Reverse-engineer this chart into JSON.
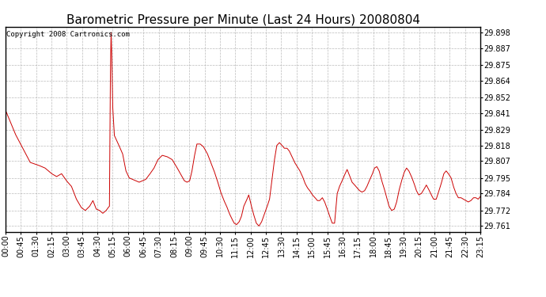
{
  "title": "Barometric Pressure per Minute (Last 24 Hours) 20080804",
  "copyright_text": "Copyright 2008 Cartronics.com",
  "line_color": "#cc0000",
  "background_color": "#ffffff",
  "plot_bg_color": "#ffffff",
  "grid_color": "#aaaaaa",
  "yticks": [
    29.761,
    29.772,
    29.784,
    29.795,
    29.807,
    29.818,
    29.829,
    29.841,
    29.852,
    29.864,
    29.875,
    29.887,
    29.898
  ],
  "ylim": [
    29.757,
    29.902
  ],
  "xtick_labels": [
    "00:00",
    "00:45",
    "01:30",
    "02:15",
    "03:00",
    "03:45",
    "04:30",
    "05:15",
    "06:00",
    "06:45",
    "07:30",
    "08:15",
    "09:00",
    "09:45",
    "10:30",
    "11:15",
    "12:00",
    "12:45",
    "13:30",
    "14:15",
    "15:00",
    "15:45",
    "16:30",
    "17:15",
    "18:00",
    "18:45",
    "19:30",
    "20:15",
    "21:00",
    "21:45",
    "22:30",
    "23:15"
  ],
  "title_fontsize": 11,
  "tick_fontsize": 7,
  "copyright_fontsize": 6.5,
  "control_points": [
    [
      0,
      29.843
    ],
    [
      30,
      29.826
    ],
    [
      55,
      29.815
    ],
    [
      75,
      29.806
    ],
    [
      100,
      29.804
    ],
    [
      120,
      29.802
    ],
    [
      140,
      29.798
    ],
    [
      155,
      29.796
    ],
    [
      170,
      29.798
    ],
    [
      185,
      29.793
    ],
    [
      200,
      29.789
    ],
    [
      215,
      29.78
    ],
    [
      230,
      29.774
    ],
    [
      242,
      29.772
    ],
    [
      255,
      29.775
    ],
    [
      265,
      29.779
    ],
    [
      275,
      29.773
    ],
    [
      285,
      29.772
    ],
    [
      295,
      29.77
    ],
    [
      305,
      29.772
    ],
    [
      311,
      29.774
    ],
    [
      315,
      29.775
    ],
    [
      316,
      29.81
    ],
    [
      318,
      29.87
    ],
    [
      320,
      29.898
    ],
    [
      322,
      29.88
    ],
    [
      325,
      29.845
    ],
    [
      330,
      29.825
    ],
    [
      340,
      29.82
    ],
    [
      355,
      29.812
    ],
    [
      365,
      29.8
    ],
    [
      375,
      29.795
    ],
    [
      385,
      29.794
    ],
    [
      395,
      29.793
    ],
    [
      405,
      29.792
    ],
    [
      415,
      29.793
    ],
    [
      425,
      29.794
    ],
    [
      435,
      29.797
    ],
    [
      450,
      29.802
    ],
    [
      462,
      29.808
    ],
    [
      475,
      29.811
    ],
    [
      490,
      29.81
    ],
    [
      505,
      29.808
    ],
    [
      518,
      29.803
    ],
    [
      530,
      29.798
    ],
    [
      542,
      29.793
    ],
    [
      550,
      29.792
    ],
    [
      558,
      29.793
    ],
    [
      565,
      29.8
    ],
    [
      572,
      29.81
    ],
    [
      580,
      29.819
    ],
    [
      590,
      29.819
    ],
    [
      600,
      29.817
    ],
    [
      612,
      29.812
    ],
    [
      622,
      29.806
    ],
    [
      632,
      29.8
    ],
    [
      642,
      29.793
    ],
    [
      652,
      29.785
    ],
    [
      662,
      29.779
    ],
    [
      670,
      29.775
    ],
    [
      678,
      29.77
    ],
    [
      686,
      29.766
    ],
    [
      693,
      29.763
    ],
    [
      700,
      29.762
    ],
    [
      708,
      29.764
    ],
    [
      715,
      29.768
    ],
    [
      722,
      29.775
    ],
    [
      730,
      29.779
    ],
    [
      737,
      29.783
    ],
    [
      744,
      29.776
    ],
    [
      752,
      29.769
    ],
    [
      760,
      29.763
    ],
    [
      768,
      29.761
    ],
    [
      776,
      29.764
    ],
    [
      785,
      29.77
    ],
    [
      793,
      29.775
    ],
    [
      800,
      29.78
    ],
    [
      808,
      29.795
    ],
    [
      815,
      29.808
    ],
    [
      822,
      29.818
    ],
    [
      830,
      29.82
    ],
    [
      838,
      29.818
    ],
    [
      845,
      29.816
    ],
    [
      853,
      29.816
    ],
    [
      860,
      29.814
    ],
    [
      868,
      29.81
    ],
    [
      876,
      29.806
    ],
    [
      884,
      29.803
    ],
    [
      892,
      29.8
    ],
    [
      900,
      29.796
    ],
    [
      908,
      29.791
    ],
    [
      915,
      29.788
    ],
    [
      922,
      29.786
    ],
    [
      930,
      29.783
    ],
    [
      938,
      29.781
    ],
    [
      945,
      29.779
    ],
    [
      952,
      29.779
    ],
    [
      960,
      29.781
    ],
    [
      967,
      29.778
    ],
    [
      975,
      29.773
    ],
    [
      982,
      29.768
    ],
    [
      990,
      29.763
    ],
    [
      997,
      29.763
    ],
    [
      1005,
      29.784
    ],
    [
      1012,
      29.789
    ],
    [
      1020,
      29.793
    ],
    [
      1027,
      29.797
    ],
    [
      1035,
      29.801
    ],
    [
      1042,
      29.797
    ],
    [
      1050,
      29.792
    ],
    [
      1058,
      29.79
    ],
    [
      1065,
      29.788
    ],
    [
      1073,
      29.786
    ],
    [
      1080,
      29.785
    ],
    [
      1088,
      29.786
    ],
    [
      1095,
      29.789
    ],
    [
      1102,
      29.793
    ],
    [
      1110,
      29.797
    ],
    [
      1118,
      29.802
    ],
    [
      1125,
      29.803
    ],
    [
      1132,
      29.8
    ],
    [
      1140,
      29.793
    ],
    [
      1148,
      29.787
    ],
    [
      1155,
      29.781
    ],
    [
      1162,
      29.775
    ],
    [
      1170,
      29.772
    ],
    [
      1178,
      29.773
    ],
    [
      1185,
      29.778
    ],
    [
      1192,
      29.786
    ],
    [
      1200,
      29.793
    ],
    [
      1208,
      29.799
    ],
    [
      1215,
      29.802
    ],
    [
      1222,
      29.8
    ],
    [
      1230,
      29.796
    ],
    [
      1238,
      29.791
    ],
    [
      1245,
      29.786
    ],
    [
      1252,
      29.783
    ],
    [
      1260,
      29.784
    ],
    [
      1268,
      29.787
    ],
    [
      1275,
      29.79
    ],
    [
      1282,
      29.787
    ],
    [
      1290,
      29.783
    ],
    [
      1297,
      29.78
    ],
    [
      1305,
      29.78
    ],
    [
      1312,
      29.785
    ],
    [
      1320,
      29.791
    ],
    [
      1328,
      29.798
    ],
    [
      1335,
      29.8
    ],
    [
      1342,
      29.798
    ],
    [
      1350,
      29.795
    ],
    [
      1357,
      29.789
    ],
    [
      1365,
      29.784
    ],
    [
      1372,
      29.781
    ],
    [
      1380,
      29.781
    ],
    [
      1387,
      29.78
    ],
    [
      1395,
      29.779
    ],
    [
      1402,
      29.778
    ],
    [
      1410,
      29.779
    ],
    [
      1418,
      29.781
    ],
    [
      1425,
      29.781
    ],
    [
      1432,
      29.78
    ],
    [
      1439,
      29.782
    ]
  ]
}
